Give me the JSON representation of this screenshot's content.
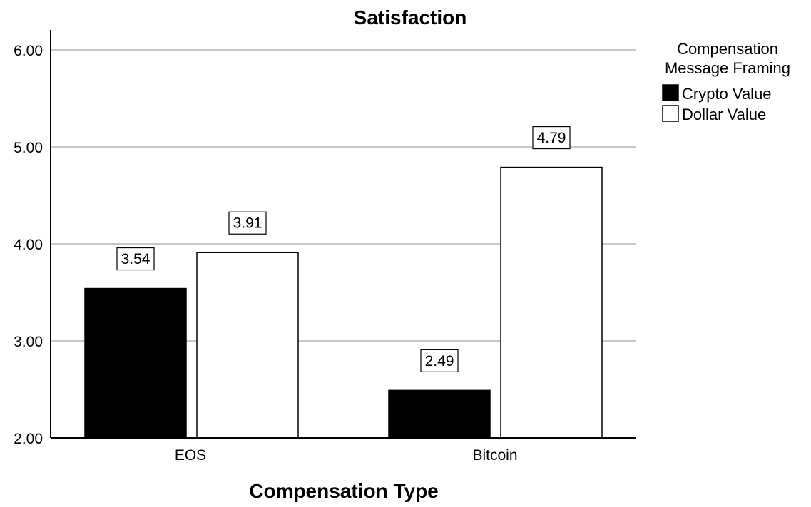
{
  "chart_data": {
    "type": "bar",
    "title": "Satisfaction",
    "xlabel": "Compensation Type",
    "ylabel": "",
    "categories": [
      "EOS",
      "Bitcoin"
    ],
    "series": [
      {
        "name": "Crypto Value",
        "values": [
          3.54,
          2.49
        ],
        "labels": [
          "3.54",
          "2.49"
        ],
        "color": "#000000"
      },
      {
        "name": "Dollar Value",
        "values": [
          3.91,
          4.79
        ],
        "labels": [
          "3.91",
          "4.79"
        ],
        "color": "#ffffff"
      }
    ],
    "ylim": [
      2.0,
      6.2
    ],
    "yticks": [
      2.0,
      3.0,
      4.0,
      5.0,
      6.0
    ],
    "ytick_labels": [
      "2.00",
      "3.00",
      "4.00",
      "5.00",
      "6.00"
    ],
    "grid": true,
    "legend": {
      "title_lines": [
        "Compensation",
        "Message Framing"
      ],
      "placement": "right"
    }
  }
}
